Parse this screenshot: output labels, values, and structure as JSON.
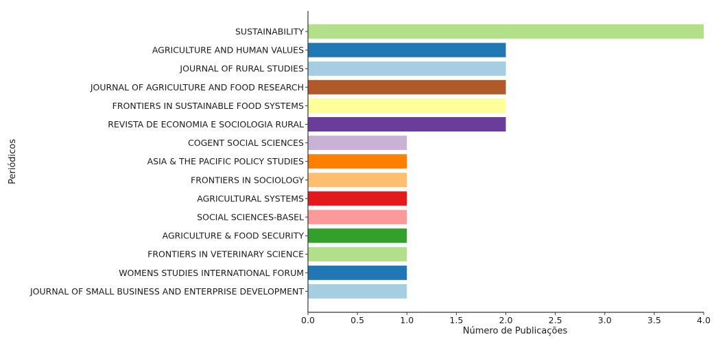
{
  "chart_data": {
    "type": "bar",
    "orientation": "horizontal",
    "xlabel": "Número de Publicações",
    "ylabel": "Periódicos",
    "xlim": [
      0,
      4.0
    ],
    "xticks": [
      "0.0",
      "0.5",
      "1.0",
      "1.5",
      "2.0",
      "2.5",
      "3.0",
      "3.5",
      "4.0"
    ],
    "grid": false,
    "categories": [
      "SUSTAINABILITY",
      "AGRICULTURE AND HUMAN VALUES",
      "JOURNAL OF RURAL STUDIES",
      "JOURNAL OF AGRICULTURE AND FOOD RESEARCH",
      "FRONTIERS IN SUSTAINABLE FOOD SYSTEMS",
      "REVISTA DE ECONOMIA E SOCIOLOGIA RURAL",
      "COGENT SOCIAL SCIENCES",
      "ASIA & THE PACIFIC POLICY STUDIES",
      "FRONTIERS IN SOCIOLOGY",
      "AGRICULTURAL SYSTEMS",
      "SOCIAL SCIENCES-BASEL",
      "AGRICULTURE & FOOD SECURITY",
      "FRONTIERS IN VETERINARY SCIENCE",
      "WOMENS STUDIES INTERNATIONAL FORUM",
      "JOURNAL OF SMALL BUSINESS AND ENTERPRISE DEVELOPMENT"
    ],
    "values": [
      4,
      2,
      2,
      2,
      2,
      2,
      1,
      1,
      1,
      1,
      1,
      1,
      1,
      1,
      1
    ],
    "colors": [
      "#b2df8a",
      "#1f78b4",
      "#a6cee3",
      "#b15928",
      "#ffff99",
      "#6a3d9a",
      "#cab2d6",
      "#ff7f00",
      "#fdbf6f",
      "#e31a1c",
      "#fb9a99",
      "#33a02c",
      "#b2df8a",
      "#1f78b4",
      "#a6cee3"
    ]
  }
}
